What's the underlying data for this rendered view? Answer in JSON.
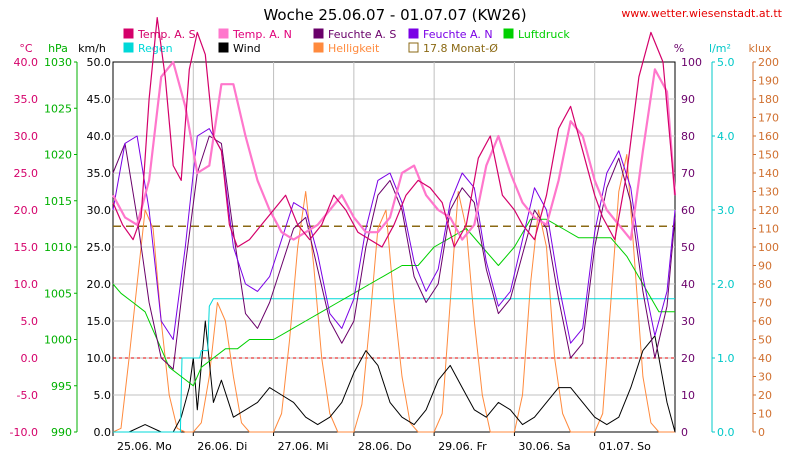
{
  "header": {
    "title": "Woche 25.06.07 - 01.07.07 (KW26)",
    "url": "www.wetter.wiesenstadt.at.tt"
  },
  "colors": {
    "temp_s": "#d4006a",
    "temp_n": "#ff77cc",
    "feuchte_s": "#6a006a",
    "feuchte_n": "#7a00e6",
    "luftdruck": "#00d000",
    "regen": "#00d8d8",
    "wind": "#000000",
    "helligkeit": "#ff8a3d",
    "monat": "#8b6914",
    "grid": "#c0c0c0",
    "zero_line": "#e00000"
  },
  "chart_data": {
    "type": "line",
    "title": "Woche 25.06.07 - 01.07.07 (KW26)",
    "x_range": [
      0,
      7
    ],
    "x_ticks": [
      "25.06. Mo",
      "26.06. Di",
      "27.06. Mi",
      "28.06. Do",
      "29.06. Fr",
      "30.06. Sa",
      "01.07. So"
    ],
    "axes": [
      {
        "unit": "°C",
        "range": [
          -10,
          40
        ],
        "step": 5,
        "ticks": [
          "40.0",
          "35.0",
          "30.0",
          "25.0",
          "20.0",
          "15.0",
          "10.0",
          "5.0",
          "0.0",
          "-5.0",
          "-10.0"
        ],
        "color": "#d4006a"
      },
      {
        "unit": "hPa",
        "range": [
          990,
          1030
        ],
        "step": 5,
        "ticks": [
          "1030",
          "1025",
          "1020",
          "1015",
          "1010",
          "1005",
          "1000",
          "995",
          "990"
        ],
        "color": "#00b000"
      },
      {
        "unit": "km/h",
        "range": [
          0,
          50
        ],
        "step": 5,
        "ticks": [
          "50.0",
          "45.0",
          "40.0",
          "35.0",
          "30.0",
          "25.0",
          "20.0",
          "15.0",
          "10.0",
          "5.0",
          "0.0"
        ],
        "color": "#000000"
      },
      {
        "unit": "%",
        "range": [
          0,
          100
        ],
        "step": 10,
        "ticks": [
          "100",
          "90",
          "80",
          "70",
          "60",
          "50",
          "40",
          "30",
          "20",
          "10",
          "0"
        ],
        "color": "#6a006a"
      },
      {
        "unit": "l/m²",
        "range": [
          0,
          5
        ],
        "step": 1,
        "ticks": [
          "5.0",
          "4.0",
          "3.0",
          "2.0",
          "1.0",
          "0.0"
        ],
        "color": "#00c8c8"
      },
      {
        "unit": "klux",
        "range": [
          0,
          200
        ],
        "step": 10,
        "ticks": [
          "200",
          "190",
          "180",
          "170",
          "160",
          "150",
          "140",
          "130",
          "120",
          "110",
          "100",
          "90",
          "80",
          "70",
          "60",
          "50",
          "40",
          "30",
          "20",
          "10",
          "0"
        ],
        "color": "#d07030"
      }
    ],
    "legend": [
      {
        "label": "Temp. A. S",
        "color": "#d4006a",
        "style": "filled"
      },
      {
        "label": "Temp. A. N",
        "color": "#ff77cc",
        "style": "filled"
      },
      {
        "label": "Feuchte A. S",
        "color": "#6a006a",
        "style": "filled"
      },
      {
        "label": "Feuchte A. N",
        "color": "#7a00e6",
        "style": "filled"
      },
      {
        "label": "Luftdruck",
        "color": "#00d000",
        "style": "filled"
      },
      {
        "label": "Regen",
        "color": "#00d8d8",
        "style": "filled"
      },
      {
        "label": "Wind",
        "color": "#000000",
        "style": "filled"
      },
      {
        "label": "Helligkeit",
        "color": "#ff8a3d",
        "style": "filled"
      },
      {
        "label": "17.8 Monat-Ø",
        "color": "#8b6914",
        "style": "outline"
      }
    ],
    "monthly_average_temp": 17.8,
    "series": [
      {
        "name": "Temp. A. S",
        "axis": "°C",
        "color": "#d4006a",
        "x": [
          0,
          0.12,
          0.25,
          0.35,
          0.45,
          0.55,
          0.65,
          0.75,
          0.85,
          0.95,
          1.05,
          1.15,
          1.25,
          1.35,
          1.45,
          1.55,
          1.7,
          1.85,
          2.0,
          2.15,
          2.3,
          2.45,
          2.6,
          2.75,
          2.9,
          3.05,
          3.2,
          3.35,
          3.5,
          3.65,
          3.8,
          3.95,
          4.1,
          4.25,
          4.4,
          4.55,
          4.7,
          4.85,
          5.0,
          5.1,
          5.25,
          5.4,
          5.55,
          5.7,
          5.85,
          6.0,
          6.1,
          6.25,
          6.4,
          6.55,
          6.7,
          6.85,
          7.0
        ],
        "y": [
          21,
          18,
          16,
          19,
          35,
          46,
          38,
          26,
          24,
          39,
          44,
          41,
          30,
          28,
          18,
          15,
          16,
          18,
          20,
          22,
          18,
          16,
          18,
          22,
          20,
          17,
          16,
          15,
          18,
          22,
          24,
          23,
          21,
          15,
          18,
          27,
          30,
          22,
          20,
          18,
          16,
          22,
          31,
          34,
          28,
          22,
          19,
          16,
          25,
          38,
          44,
          40,
          22
        ]
      },
      {
        "name": "Temp. A. N",
        "axis": "°C",
        "color": "#ff77cc",
        "x": [
          0,
          0.15,
          0.3,
          0.45,
          0.6,
          0.75,
          0.9,
          1.05,
          1.2,
          1.35,
          1.5,
          1.65,
          1.8,
          1.95,
          2.1,
          2.25,
          2.4,
          2.55,
          2.7,
          2.85,
          3.0,
          3.15,
          3.3,
          3.45,
          3.6,
          3.75,
          3.9,
          4.05,
          4.2,
          4.35,
          4.5,
          4.65,
          4.8,
          4.95,
          5.1,
          5.25,
          5.4,
          5.55,
          5.7,
          5.85,
          6.0,
          6.15,
          6.3,
          6.45,
          6.6,
          6.75,
          6.9,
          7.0
        ],
        "y": [
          22,
          19,
          18,
          24,
          38,
          40,
          34,
          25,
          26,
          37,
          37,
          30,
          24,
          20,
          17,
          16,
          17,
          18,
          20,
          22,
          19,
          17,
          17,
          19,
          25,
          26,
          22,
          20,
          19,
          16,
          18,
          26,
          30,
          25,
          21,
          19,
          18,
          24,
          32,
          30,
          24,
          20,
          18,
          16,
          28,
          39,
          36,
          22
        ]
      },
      {
        "name": "Feuchte A. S",
        "axis": "%",
        "color": "#6a006a",
        "x": [
          0,
          0.15,
          0.3,
          0.45,
          0.6,
          0.75,
          0.9,
          1.05,
          1.2,
          1.35,
          1.5,
          1.65,
          1.8,
          1.95,
          2.1,
          2.25,
          2.4,
          2.55,
          2.7,
          2.85,
          3.0,
          3.15,
          3.3,
          3.45,
          3.6,
          3.75,
          3.9,
          4.05,
          4.2,
          4.35,
          4.5,
          4.65,
          4.8,
          4.95,
          5.1,
          5.25,
          5.4,
          5.55,
          5.7,
          5.85,
          6.0,
          6.15,
          6.3,
          6.45,
          6.6,
          6.75,
          6.9,
          7.0
        ],
        "y": [
          70,
          78,
          58,
          35,
          20,
          17,
          45,
          70,
          80,
          78,
          54,
          32,
          28,
          35,
          45,
          55,
          58,
          44,
          30,
          24,
          30,
          50,
          64,
          68,
          60,
          42,
          35,
          40,
          60,
          66,
          62,
          44,
          32,
          36,
          48,
          60,
          55,
          36,
          20,
          24,
          50,
          66,
          74,
          62,
          38,
          20,
          34,
          58
        ]
      },
      {
        "name": "Feuchte A. N",
        "axis": "%",
        "color": "#7a00e6",
        "x": [
          0,
          0.15,
          0.3,
          0.45,
          0.6,
          0.75,
          0.9,
          1.05,
          1.2,
          1.35,
          1.5,
          1.65,
          1.8,
          1.95,
          2.1,
          2.25,
          2.4,
          2.55,
          2.7,
          2.85,
          3.0,
          3.15,
          3.3,
          3.45,
          3.6,
          3.75,
          3.9,
          4.05,
          4.2,
          4.35,
          4.5,
          4.65,
          4.8,
          4.95,
          5.1,
          5.25,
          5.4,
          5.55,
          5.7,
          5.85,
          6.0,
          6.15,
          6.3,
          6.45,
          6.6,
          6.75,
          6.9,
          7.0
        ],
        "y": [
          60,
          78,
          80,
          60,
          30,
          25,
          50,
          80,
          82,
          76,
          50,
          40,
          38,
          42,
          52,
          62,
          60,
          48,
          32,
          28,
          36,
          55,
          68,
          70,
          62,
          46,
          38,
          44,
          62,
          70,
          66,
          46,
          34,
          38,
          52,
          66,
          60,
          40,
          24,
          28,
          54,
          70,
          76,
          66,
          42,
          26,
          38,
          60
        ]
      },
      {
        "name": "Luftdruck",
        "axis": "hPa",
        "color": "#00d000",
        "x": [
          0,
          0.1,
          0.25,
          0.4,
          0.5,
          0.6,
          0.7,
          0.85,
          1.0,
          1.1,
          1.25,
          1.4,
          1.55,
          1.7,
          1.85,
          2.0,
          2.2,
          2.4,
          2.6,
          2.8,
          3.0,
          3.2,
          3.4,
          3.6,
          3.8,
          4.0,
          4.2,
          4.4,
          4.6,
          4.8,
          5.0,
          5.2,
          5.4,
          5.6,
          5.8,
          6.0,
          6.2,
          6.4,
          6.6,
          6.8,
          7.0
        ],
        "y": [
          1006,
          1005,
          1004,
          1003,
          1001,
          999,
          997,
          996,
          995,
          997,
          998,
          999,
          999,
          1000,
          1000,
          1000,
          1001,
          1002,
          1003,
          1004,
          1005,
          1006,
          1007,
          1008,
          1008,
          1010,
          1011,
          1012,
          1010,
          1008,
          1010,
          1013,
          1013,
          1012,
          1011,
          1011,
          1011,
          1009,
          1006,
          1003,
          1003
        ]
      },
      {
        "name": "Regen",
        "axis": "l/m²",
        "color": "#00d8d8",
        "x": [
          0,
          0.84,
          0.86,
          1.08,
          1.1,
          1.18,
          1.2,
          1.25,
          7.0
        ],
        "y": [
          0,
          0,
          1.0,
          1.0,
          1.1,
          1.1,
          1.7,
          1.8,
          1.8
        ]
      },
      {
        "name": "Wind",
        "axis": "km/h",
        "color": "#000000",
        "x": [
          0,
          0.2,
          0.4,
          0.6,
          0.75,
          0.85,
          0.95,
          1.0,
          1.05,
          1.15,
          1.25,
          1.35,
          1.5,
          1.65,
          1.8,
          1.95,
          2.1,
          2.25,
          2.4,
          2.55,
          2.7,
          2.85,
          3.0,
          3.15,
          3.3,
          3.45,
          3.6,
          3.75,
          3.9,
          4.05,
          4.2,
          4.35,
          4.5,
          4.65,
          4.8,
          4.95,
          5.1,
          5.25,
          5.4,
          5.55,
          5.7,
          5.85,
          6.0,
          6.15,
          6.3,
          6.45,
          6.6,
          6.75,
          6.9,
          7.0
        ],
        "y": [
          0,
          0,
          1,
          0,
          0,
          2,
          6,
          10,
          3,
          15,
          4,
          7,
          2,
          3,
          4,
          6,
          5,
          4,
          2,
          1,
          2,
          4,
          8,
          11,
          9,
          4,
          2,
          1,
          3,
          7,
          9,
          6,
          3,
          2,
          4,
          3,
          1,
          2,
          4,
          6,
          6,
          4,
          2,
          1,
          2,
          6,
          11,
          13,
          4,
          0
        ]
      },
      {
        "name": "Helligkeit",
        "axis": "klux",
        "color": "#ff8a3d",
        "x": [
          0,
          0.1,
          0.2,
          0.3,
          0.4,
          0.5,
          0.6,
          0.7,
          0.8,
          0.9,
          1.0,
          1.1,
          1.2,
          1.3,
          1.4,
          1.5,
          1.6,
          1.7,
          1.8,
          1.9,
          2.0,
          2.1,
          2.2,
          2.3,
          2.4,
          2.5,
          2.6,
          2.7,
          2.8,
          2.9,
          3.0,
          3.1,
          3.2,
          3.3,
          3.4,
          3.5,
          3.6,
          3.7,
          3.8,
          3.9,
          4.0,
          4.1,
          4.2,
          4.3,
          4.4,
          4.5,
          4.6,
          4.7,
          4.8,
          4.9,
          5.0,
          5.1,
          5.2,
          5.3,
          5.4,
          5.5,
          5.6,
          5.7,
          5.8,
          5.9,
          6.0,
          6.1,
          6.2,
          6.3,
          6.4,
          6.5,
          6.6,
          6.7,
          6.8,
          6.9,
          7.0
        ],
        "y": [
          0,
          2,
          40,
          80,
          120,
          110,
          60,
          20,
          2,
          0,
          0,
          5,
          30,
          70,
          60,
          30,
          5,
          0,
          0,
          0,
          0,
          10,
          50,
          100,
          130,
          90,
          40,
          10,
          0,
          0,
          0,
          15,
          60,
          110,
          120,
          70,
          30,
          5,
          0,
          0,
          0,
          10,
          70,
          130,
          110,
          60,
          20,
          0,
          0,
          0,
          0,
          20,
          80,
          120,
          100,
          40,
          10,
          0,
          0,
          0,
          0,
          10,
          70,
          130,
          150,
          90,
          30,
          5,
          0,
          0,
          0
        ]
      }
    ]
  }
}
